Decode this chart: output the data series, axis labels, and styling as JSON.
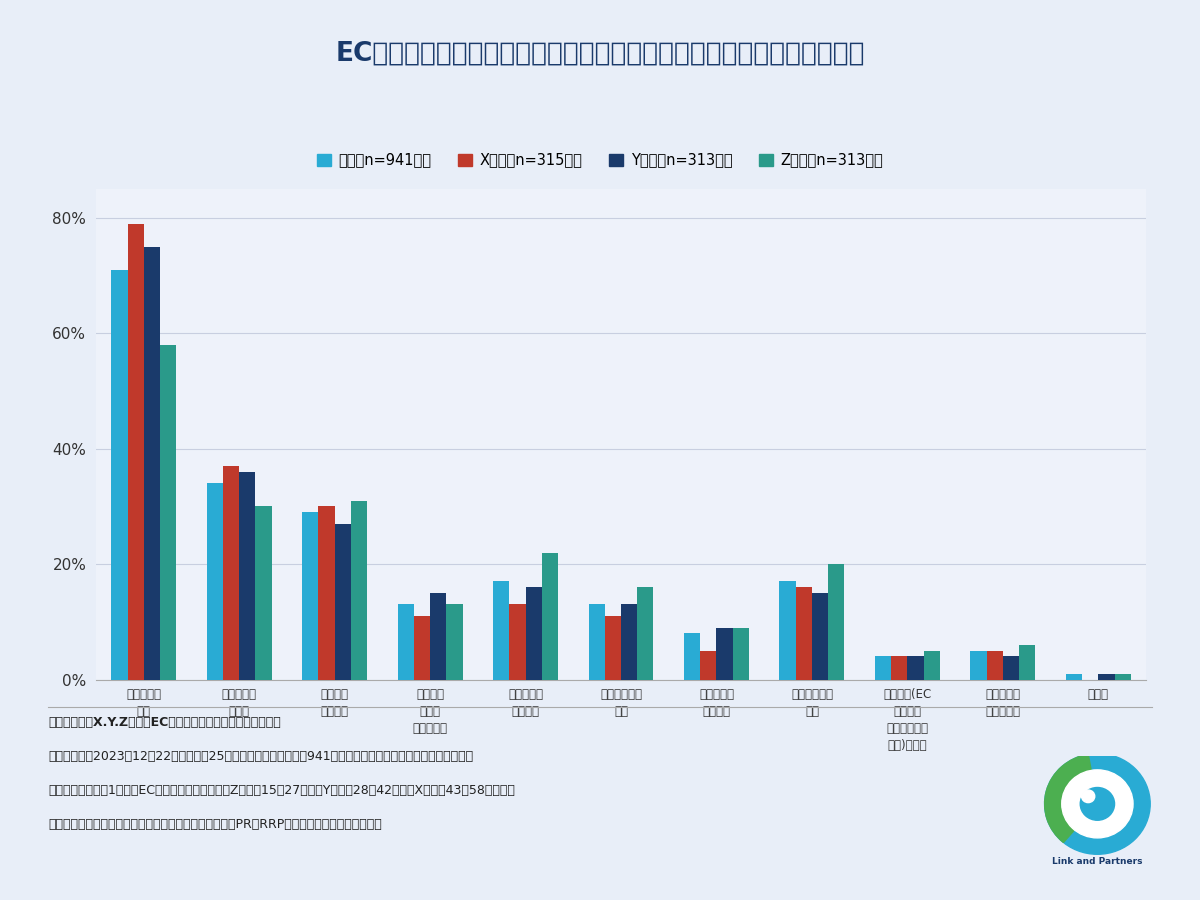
{
  "title": "ECモール内で商品を探す際、どのように検索しますか？（複数回答可）",
  "categories": [
    "キーワード\n検索",
    "カテゴリー\n別検索",
    "価格帯で\n絞り込む",
    "レビュー\n評価で\nフィルター",
    "人気商品を\nチェック",
    "ブランド名で\n検索",
    "新着商品を\nチェック",
    "セール商品を\n探す",
    "推奨商品(EC\nモールの\nピックアップ\n商品)を参照",
    "類似商品の\n表示を利用",
    "その他"
  ],
  "series": {
    "全体（n=941人）": [
      71,
      34,
      29,
      13,
      17,
      13,
      8,
      17,
      4,
      5,
      1
    ],
    "X世代（n=315人）": [
      79,
      37,
      30,
      11,
      13,
      11,
      5,
      16,
      4,
      5,
      0
    ],
    "Y世代（n=313人）": [
      75,
      36,
      27,
      15,
      16,
      13,
      9,
      15,
      4,
      4,
      1
    ],
    "Z世代（n=313人）": [
      58,
      30,
      31,
      13,
      22,
      16,
      9,
      20,
      5,
      6,
      1
    ]
  },
  "colors": {
    "全体（n=941人）": "#29ABD4",
    "X世代（n=315人）": "#C0392B",
    "Y世代（n=313人）": "#1A3A6B",
    "Z世代（n=313人）": "#2A9A8A"
  },
  "ylim": [
    0,
    85
  ],
  "yticks": [
    0,
    20,
    40,
    60,
    80
  ],
  "background_color": "#E8EEF8",
  "plot_background": "#EEF2FA",
  "title_color": "#1A3A6B",
  "footnote_lines": [
    "《調査概要：X.Y.Z世代のECモールの利用状況に関する調査》",
    "・調査期間：2023年12月22日（金）〜25日（月）　・調査人数：941人　・モニター提供元：ゼネラルリサーチ",
    "・調査対象：年に1回以上ECモールを活用しているZ世代（15〜27歳）、Y世代（28〜42歳）、X世代（43〜58歳）の方",
    "・調査方法：リンクアンドパートナーズが提供する調査PR「RRP」によるインターネット調査"
  ]
}
